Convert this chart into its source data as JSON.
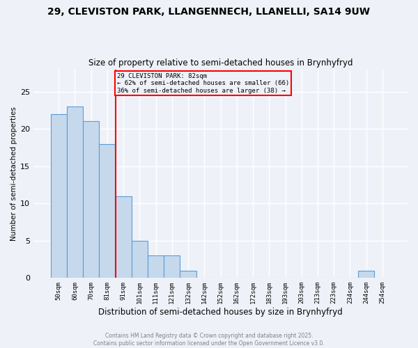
{
  "title_line1": "29, CLEVISTON PARK, LLANGENNECH, LLANELLI, SA14 9UW",
  "title_line2": "Size of property relative to semi-detached houses in Brynhyfryd",
  "categories": [
    "50sqm",
    "60sqm",
    "70sqm",
    "81sqm",
    "91sqm",
    "101sqm",
    "111sqm",
    "121sqm",
    "132sqm",
    "142sqm",
    "152sqm",
    "162sqm",
    "172sqm",
    "183sqm",
    "193sqm",
    "203sqm",
    "213sqm",
    "223sqm",
    "234sqm",
    "244sqm",
    "254sqm"
  ],
  "values": [
    22,
    23,
    21,
    18,
    11,
    5,
    3,
    3,
    1,
    0,
    0,
    0,
    0,
    0,
    0,
    0,
    0,
    0,
    0,
    1,
    0
  ],
  "bar_color": "#c6d9ec",
  "bar_edge_color": "#5b9bd5",
  "vline_index": 3.5,
  "vline_color": "red",
  "xlabel": "Distribution of semi-detached houses by size in Brynhyfryd",
  "ylabel": "Number of semi-detached properties",
  "ylim": [
    0,
    28
  ],
  "yticks": [
    0,
    5,
    10,
    15,
    20,
    25
  ],
  "annotation_title": "29 CLEVISTON PARK: 82sqm",
  "annotation_line2": "← 62% of semi-detached houses are smaller (66)",
  "annotation_line3": "36% of semi-detached houses are larger (38) →",
  "annotation_box_color": "red",
  "footer_line1": "Contains HM Land Registry data © Crown copyright and database right 2025.",
  "footer_line2": "Contains public sector information licensed under the Open Government Licence v3.0.",
  "background_color": "#eef2f8",
  "grid_color": "#ffffff"
}
